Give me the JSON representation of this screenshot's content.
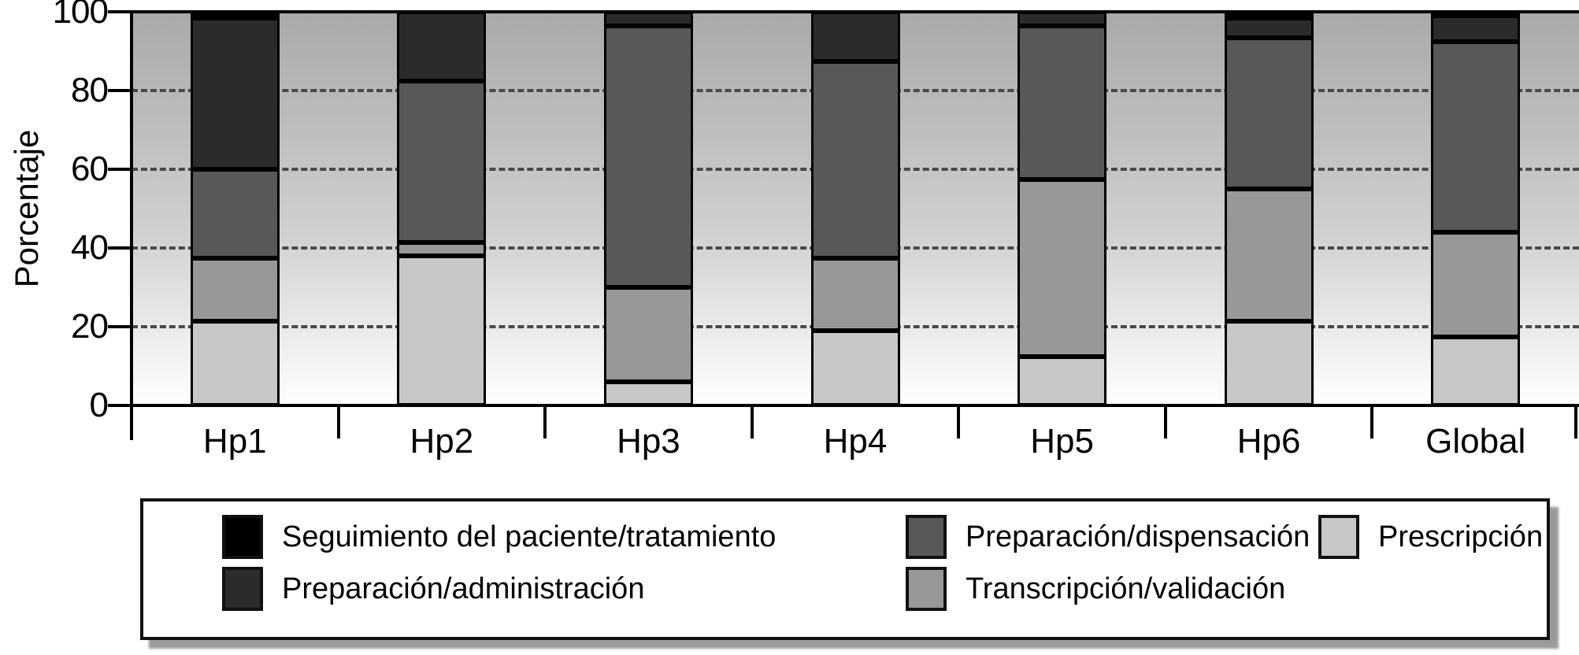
{
  "chart_data": {
    "type": "bar",
    "stacked": true,
    "title": "",
    "xlabel": "",
    "ylabel": "Porcentaje",
    "ylim": [
      0,
      100
    ],
    "yticks": [
      0,
      20,
      40,
      60,
      80,
      100
    ],
    "grid": "horizontal dashed lines at 20, 40, 60, 80",
    "legend_position": "bottom boxed",
    "categories": [
      "Hp1",
      "Hp2",
      "Hp3",
      "Hp4",
      "Hp5",
      "Hp6",
      "Global"
    ],
    "series": [
      {
        "name": "Prescripción",
        "color": "#c7c7c7",
        "values": [
          21.5,
          38.0,
          6.0,
          19.0,
          12.5,
          21.5,
          17.5
        ]
      },
      {
        "name": "Transcripción/validación",
        "color": "#989898",
        "values": [
          16.0,
          3.5,
          24.0,
          18.5,
          45.0,
          33.5,
          26.5
        ]
      },
      {
        "name": "Preparación/dispensación",
        "color": "#585858",
        "values": [
          22.5,
          41.0,
          66.5,
          50.0,
          39.0,
          38.5,
          48.5
        ]
      },
      {
        "name": "Preparación/administración",
        "color": "#2b2b2b",
        "values": [
          38.5,
          17.5,
          3.5,
          12.5,
          3.5,
          5.0,
          6.5
        ]
      },
      {
        "name": "Seguimiento del paciente/tratamiento",
        "color": "#000000",
        "values": [
          1.5,
          0,
          0,
          0,
          0,
          1.5,
          1.0
        ]
      }
    ]
  },
  "legend": {
    "items": [
      {
        "label": "Seguimiento del paciente/tratamiento",
        "color": "#000000",
        "col": 0,
        "row": 0
      },
      {
        "label": "Preparación/administración",
        "color": "#2b2b2b",
        "col": 0,
        "row": 1
      },
      {
        "label": "Preparación/dispensación",
        "color": "#585858",
        "col": 1,
        "row": 0
      },
      {
        "label": "Transcripción/validación",
        "color": "#989898",
        "col": 1,
        "row": 1
      },
      {
        "label": "Prescripción",
        "color": "#c7c7c7",
        "col": 2,
        "row": 0
      }
    ]
  },
  "colors": {
    "background_gradient_top": "#a9a9a9",
    "background_gradient_bottom": "#ffffff",
    "gridline": "#4a4a4a",
    "axis": "#000000",
    "legend_shadow": "#9b9b9b"
  }
}
